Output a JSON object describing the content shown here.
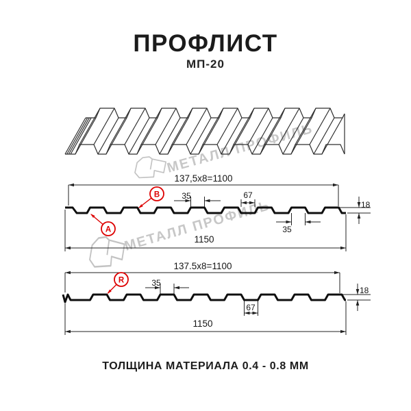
{
  "colors": {
    "accent_red": "#dd0000",
    "ink": "#1a1a1a",
    "watermark_gray": "#c7c7c7"
  },
  "header": {
    "title": "ПРОФЛИСТ",
    "subtitle": "МП-20"
  },
  "watermark": {
    "brand": "МЕТАЛЛ ПРОФИЛЬ"
  },
  "profile_top": {
    "pitch_formula": "137,5x8=1100",
    "crest_width": "35",
    "valley_width": "67",
    "height": "18",
    "crest_width_bottom": "35",
    "total_width": "1150",
    "label_a": "A",
    "label_b": "B"
  },
  "profile_bottom": {
    "pitch_formula": "137.5x8=1100",
    "crest_width": "35",
    "height": "18",
    "valley_width": "67",
    "total_width": "1150",
    "label_r": "R"
  },
  "footer": {
    "caption": "ТОЛЩИНА МАТЕРИАЛА 0.4 - 0.8 ММ"
  }
}
